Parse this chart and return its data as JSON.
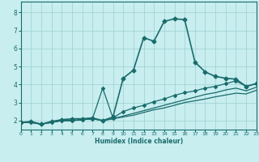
{
  "xlabel": "Humidex (Indice chaleur)",
  "background_color": "#c8eef0",
  "grid_color": "#9ecfcf",
  "line_color": "#1a6b6b",
  "xlim": [
    0,
    23
  ],
  "ylim": [
    1.5,
    8.6
  ],
  "xticks": [
    0,
    1,
    2,
    3,
    4,
    5,
    6,
    7,
    8,
    9,
    10,
    11,
    12,
    13,
    14,
    15,
    16,
    17,
    18,
    19,
    20,
    21,
    22,
    23
  ],
  "yticks": [
    2,
    3,
    4,
    5,
    6,
    7,
    8
  ],
  "series": [
    {
      "x": [
        0,
        1,
        2,
        3,
        4,
        5,
        6,
        7,
        8,
        9,
        10,
        11,
        12,
        13,
        14,
        15,
        16,
        17,
        18,
        19,
        20,
        21,
        22,
        23
      ],
      "y": [
        1.9,
        1.95,
        1.8,
        1.95,
        2.05,
        2.1,
        2.1,
        2.15,
        2.0,
        2.2,
        4.35,
        4.8,
        6.6,
        6.4,
        7.5,
        7.65,
        7.6,
        5.25,
        4.7,
        4.45,
        4.35,
        4.3,
        3.9,
        4.05
      ],
      "marker": "D",
      "markersize": 2.5,
      "linewidth": 1.2
    },
    {
      "x": [
        0,
        1,
        2,
        3,
        4,
        5,
        6,
        7,
        8,
        9,
        10,
        11,
        12,
        13,
        14,
        15,
        16,
        17,
        18,
        19,
        20,
        21,
        22,
        23
      ],
      "y": [
        1.9,
        1.9,
        1.8,
        1.9,
        2.0,
        2.0,
        2.05,
        2.1,
        3.8,
        2.15,
        2.5,
        2.7,
        2.85,
        3.05,
        3.2,
        3.4,
        3.55,
        3.65,
        3.8,
        3.9,
        4.05,
        4.2,
        3.9,
        4.05
      ],
      "marker": "D",
      "markersize": 2.0,
      "linewidth": 0.9
    },
    {
      "x": [
        0,
        1,
        2,
        3,
        4,
        5,
        6,
        7,
        8,
        9,
        10,
        11,
        12,
        13,
        14,
        15,
        16,
        17,
        18,
        19,
        20,
        21,
        22,
        23
      ],
      "y": [
        1.9,
        1.9,
        1.8,
        1.9,
        2.0,
        2.0,
        2.05,
        2.1,
        2.0,
        2.1,
        2.25,
        2.4,
        2.55,
        2.7,
        2.85,
        3.0,
        3.15,
        3.3,
        3.45,
        3.55,
        3.7,
        3.8,
        3.65,
        3.85
      ],
      "marker": null,
      "markersize": 0,
      "linewidth": 0.9
    },
    {
      "x": [
        0,
        1,
        2,
        3,
        4,
        5,
        6,
        7,
        8,
        9,
        10,
        11,
        12,
        13,
        14,
        15,
        16,
        17,
        18,
        19,
        20,
        21,
        22,
        23
      ],
      "y": [
        1.9,
        1.9,
        1.8,
        1.9,
        2.0,
        2.0,
        2.05,
        2.1,
        2.0,
        2.1,
        2.2,
        2.3,
        2.45,
        2.6,
        2.7,
        2.85,
        3.0,
        3.1,
        3.2,
        3.32,
        3.42,
        3.52,
        3.48,
        3.68
      ],
      "marker": null,
      "markersize": 0,
      "linewidth": 0.9
    }
  ]
}
